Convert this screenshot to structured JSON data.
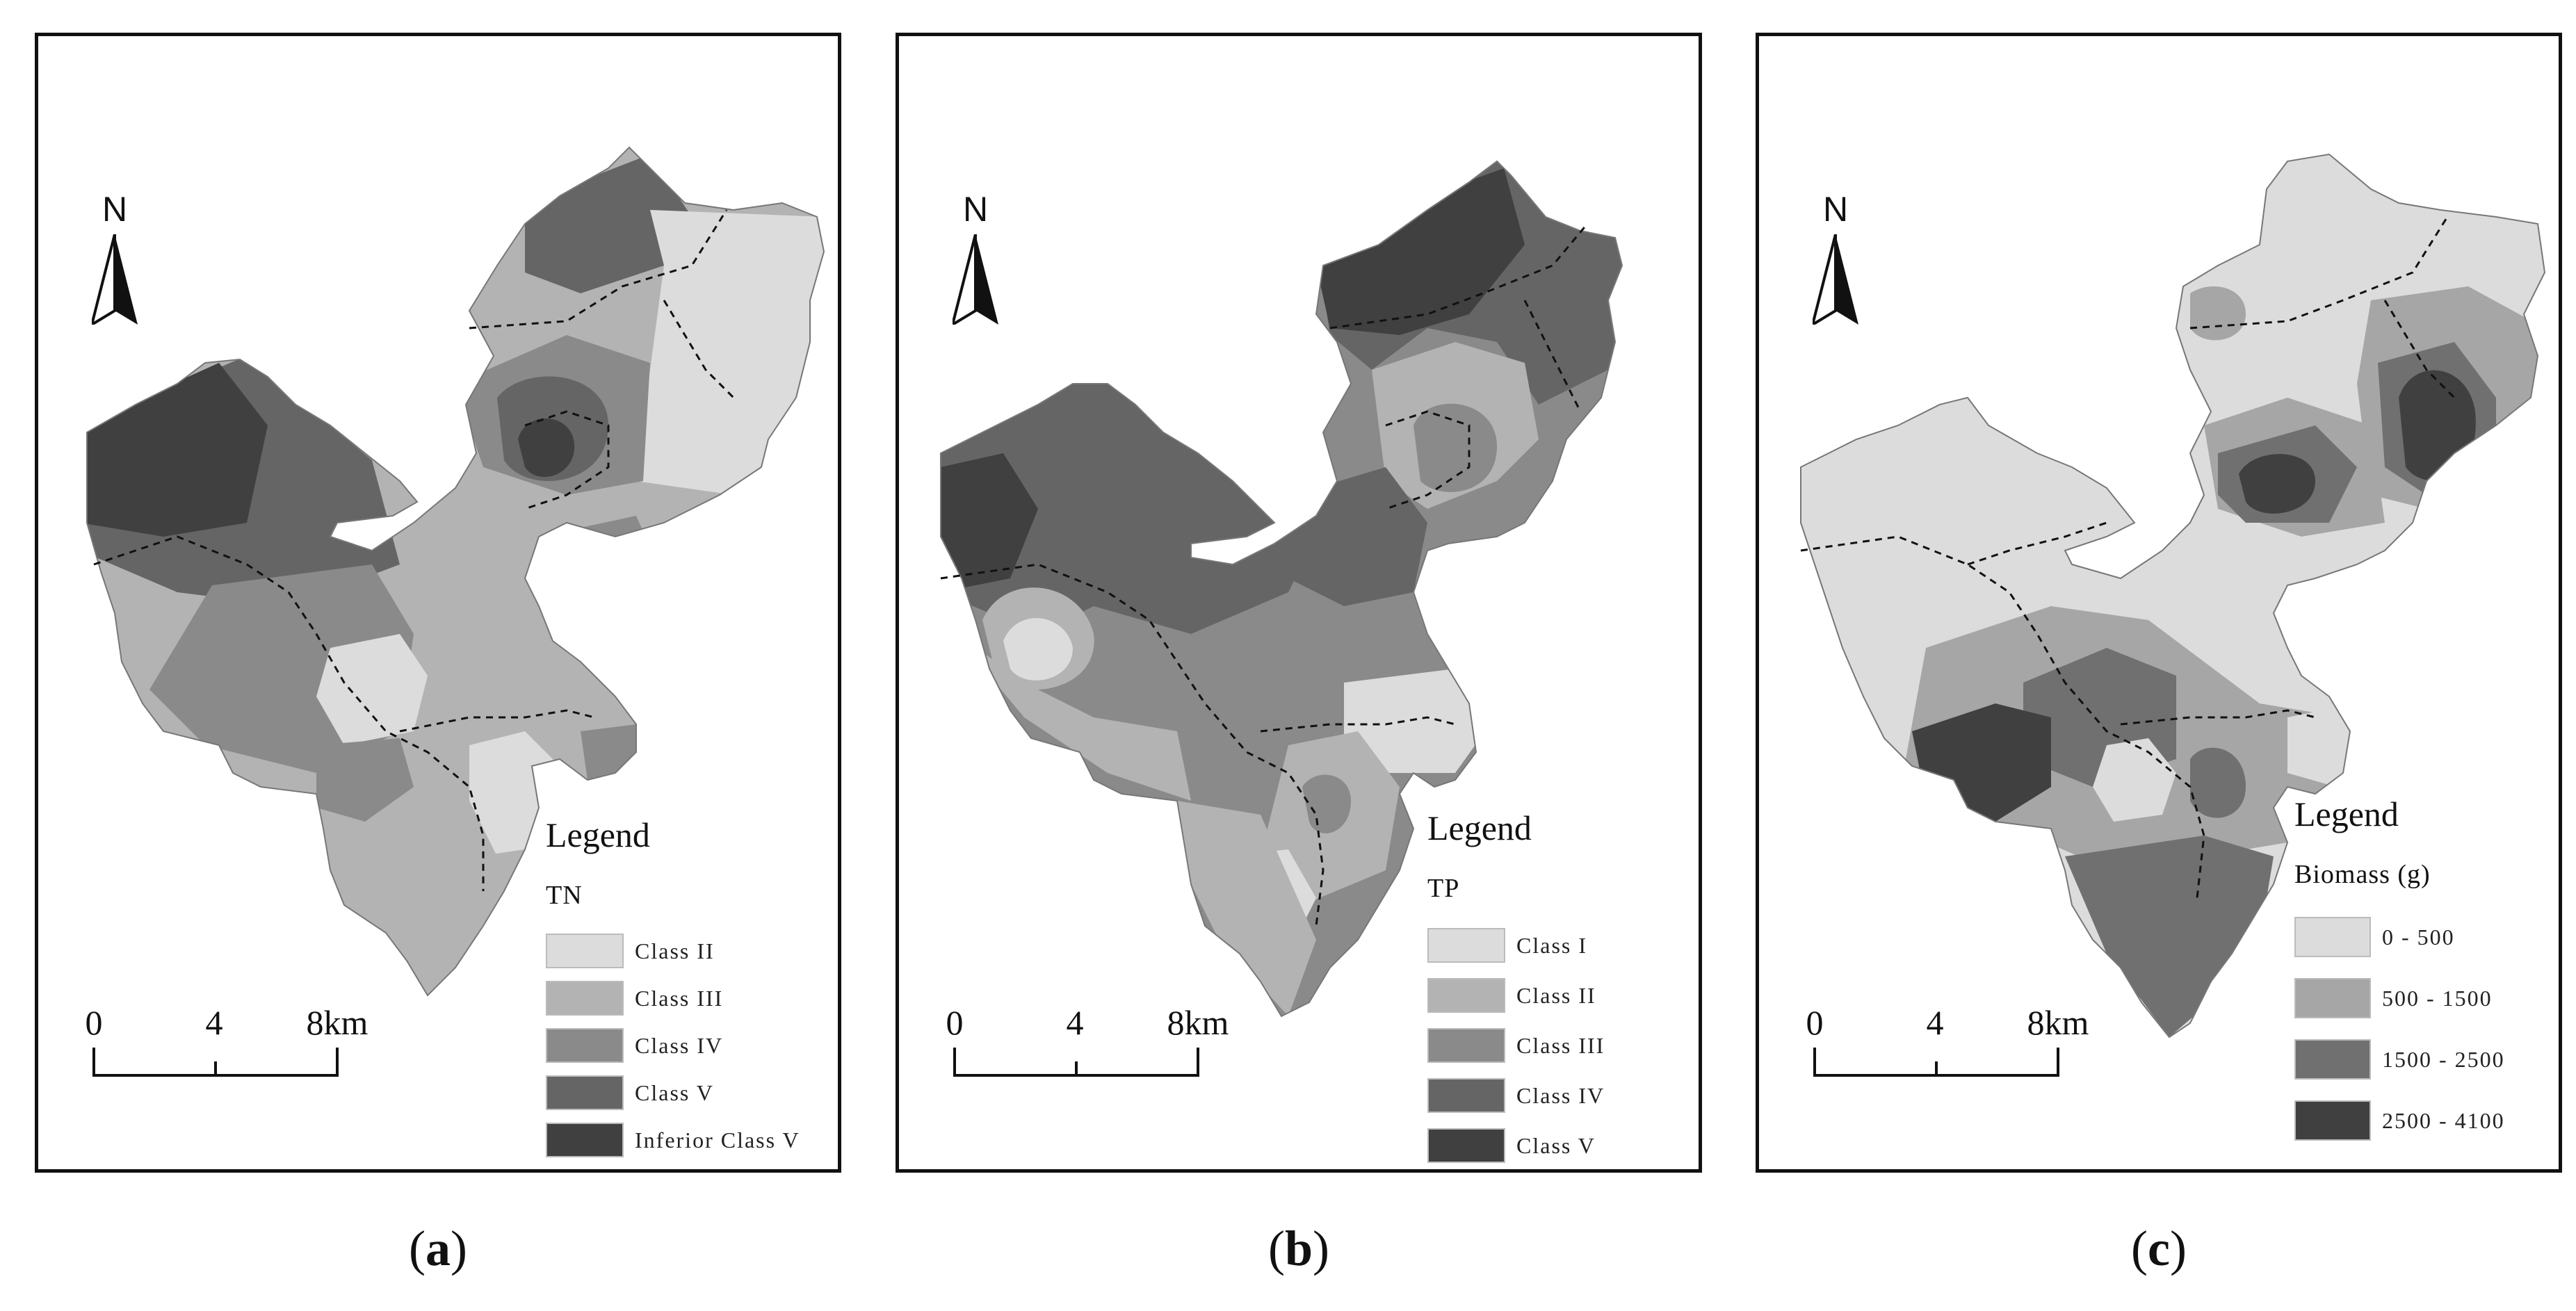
{
  "north_label": "N",
  "scale": {
    "ticks": [
      "0",
      "4",
      "8km"
    ]
  },
  "colors": {
    "class_1": "#dcdcdc",
    "class_2": "#b3b3b3",
    "class_3": "#8a8a8a",
    "class_4": "#656565",
    "class_5": "#404040",
    "boundary": "#111111"
  },
  "panels": [
    {
      "caption": "(a)",
      "caption_letter": "a",
      "legend": {
        "title": "Legend",
        "subtitle": "TN",
        "items": [
          {
            "label": "Class II",
            "color": "#dcdcdc"
          },
          {
            "label": "Class III",
            "color": "#b3b3b3"
          },
          {
            "label": "Class IV",
            "color": "#8a8a8a"
          },
          {
            "label": "Class V",
            "color": "#656565"
          },
          {
            "label": "Inferior Class V",
            "color": "#404040"
          }
        ]
      }
    },
    {
      "caption": "(b)",
      "caption_letter": "b",
      "legend": {
        "title": "Legend",
        "subtitle": "TP",
        "items": [
          {
            "label": "Class I",
            "color": "#dcdcdc"
          },
          {
            "label": "Class II",
            "color": "#b3b3b3"
          },
          {
            "label": "Class III",
            "color": "#8a8a8a"
          },
          {
            "label": "Class IV",
            "color": "#656565"
          },
          {
            "label": "Class V",
            "color": "#404040"
          }
        ]
      }
    },
    {
      "caption": "(c)",
      "caption_letter": "c",
      "legend": {
        "title": "Legend",
        "subtitle": "Biomass (g)",
        "items": [
          {
            "label": "0 - 500",
            "color": "#dcdcdc"
          },
          {
            "label": "500 - 1500",
            "color": "#a6a6a6"
          },
          {
            "label": "1500 - 2500",
            "color": "#707070"
          },
          {
            "label": "2500 - 4100",
            "color": "#404040"
          }
        ]
      }
    }
  ]
}
